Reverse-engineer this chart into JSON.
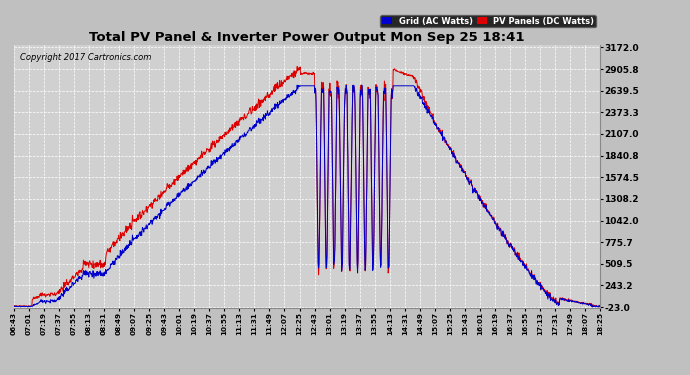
{
  "title": "Total PV Panel & Inverter Power Output Mon Sep 25 18:41",
  "copyright": "Copyright 2017 Cartronics.com",
  "legend_blue": "Grid (AC Watts)",
  "legend_red": "PV Panels (DC Watts)",
  "y_ticks": [
    -23.0,
    243.2,
    509.5,
    775.7,
    1042.0,
    1308.2,
    1574.5,
    1840.8,
    2107.0,
    2373.3,
    2639.5,
    2905.8,
    3172.0
  ],
  "y_min": -23.0,
  "y_max": 3172.0,
  "bg_color": "#c0c0c0",
  "plot_bg_color": "#d0d0d0",
  "grid_color": "#ffffff",
  "blue_color": "#0000cc",
  "red_color": "#dd0000",
  "x_tick_labels": [
    "06:43",
    "07:01",
    "07:19",
    "07:37",
    "07:55",
    "08:13",
    "08:31",
    "08:49",
    "09:07",
    "09:25",
    "09:43",
    "10:01",
    "10:19",
    "10:37",
    "10:55",
    "11:13",
    "11:31",
    "11:49",
    "12:07",
    "12:25",
    "12:43",
    "13:01",
    "13:19",
    "13:37",
    "13:55",
    "14:13",
    "14:31",
    "14:49",
    "15:07",
    "15:25",
    "15:43",
    "16:01",
    "16:19",
    "16:37",
    "16:55",
    "17:13",
    "17:31",
    "17:49",
    "18:07",
    "18:25"
  ]
}
